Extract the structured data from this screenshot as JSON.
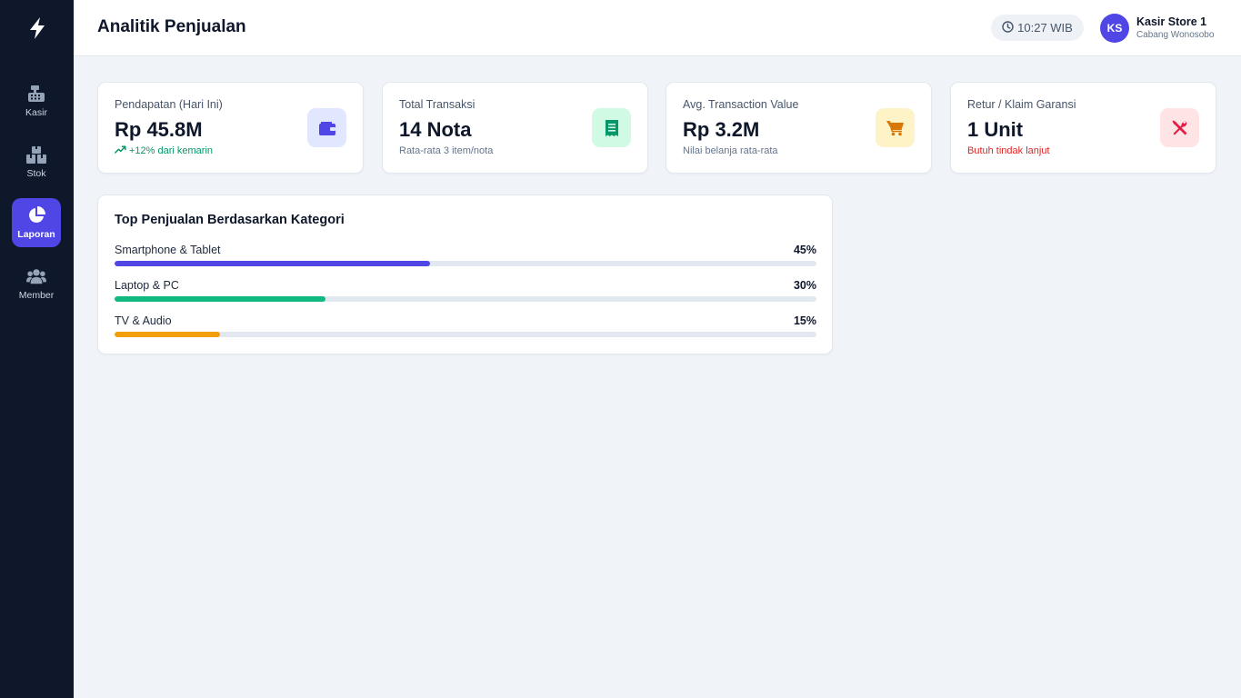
{
  "header": {
    "title": "Analitik Penjualan",
    "clock": "10:27 WIB",
    "user": {
      "initials": "KS",
      "name": "Kasir Store 1",
      "branch": "Cabang Wonosobo"
    }
  },
  "sidebar": {
    "logo_icon": "bolt-icon",
    "items": [
      {
        "label": "Kasir",
        "icon": "cash-register-icon",
        "active": false
      },
      {
        "label": "Stok",
        "icon": "boxes-icon",
        "active": false
      },
      {
        "label": "Laporan",
        "icon": "pie-chart-icon",
        "active": true
      },
      {
        "label": "Member",
        "icon": "users-icon",
        "active": false
      }
    ]
  },
  "stats": [
    {
      "label": "Pendapatan (Hari Ini)",
      "value": "Rp 45.8M",
      "sub": "+12% dari kemarin",
      "sub_tone": "up",
      "icon": "wallet-icon",
      "icon_color": "#4f46e5",
      "icon_bg": "#e0e7ff"
    },
    {
      "label": "Total Transaksi",
      "value": "14 Nota",
      "sub": "Rata-rata 3 item/nota",
      "sub_tone": "neutral",
      "icon": "receipt-icon",
      "icon_color": "#059669",
      "icon_bg": "#d1fae5"
    },
    {
      "label": "Avg. Transaction Value",
      "value": "Rp 3.2M",
      "sub": "Nilai belanja rata-rata",
      "sub_tone": "neutral",
      "icon": "cart-icon",
      "icon_color": "#d97706",
      "icon_bg": "#fef3c7"
    },
    {
      "label": "Retur / Klaim Garansi",
      "value": "1 Unit",
      "sub": "Butuh tindak lanjut",
      "sub_tone": "warn",
      "icon": "tools-icon",
      "icon_color": "#e11d48",
      "icon_bg": "#ffe4e6"
    }
  ],
  "top_categories": {
    "title": "Top Penjualan Berdasarkan Kategori",
    "items": [
      {
        "name": "Smartphone & Tablet",
        "percent_label": "45%",
        "percent": 45,
        "color": "#4f46e5"
      },
      {
        "name": "Laptop & PC",
        "percent_label": "30%",
        "percent": 30,
        "color": "#10b981"
      },
      {
        "name": "TV & Audio",
        "percent_label": "15%",
        "percent": 15,
        "color": "#f59e0b"
      }
    ]
  }
}
